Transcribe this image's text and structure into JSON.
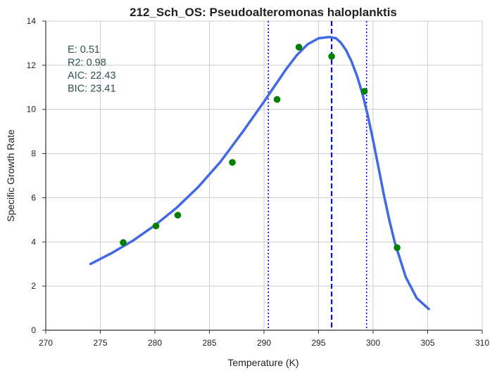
{
  "chart_data": {
    "type": "scatter",
    "title": "212_Sch_OS: Pseudoalteromonas haloplanktis",
    "xlabel": "Temperature (K)",
    "ylabel": "Specific Growth Rate",
    "xlim": [
      270,
      310
    ],
    "ylim": [
      0,
      14
    ],
    "xticks": [
      270,
      275,
      280,
      285,
      290,
      295,
      300,
      305,
      310
    ],
    "yticks": [
      0,
      2,
      4,
      6,
      8,
      10,
      12,
      14
    ],
    "grid": true,
    "annotations": [
      "E:  0.51",
      "R2:  0.98",
      "AIC: 22.43",
      "BIC: 23.41"
    ],
    "observed_points": {
      "color": "#008000",
      "x": [
        277.1,
        280.1,
        282.1,
        287.1,
        291.2,
        293.2,
        296.2,
        299.2,
        302.2
      ],
      "y": [
        3.97,
        4.72,
        5.21,
        7.6,
        10.45,
        12.82,
        12.4,
        10.82,
        3.74
      ]
    },
    "fitted_curve": {
      "color": "#4169e1",
      "x": [
        274.1,
        276.0,
        278.0,
        280.0,
        282.0,
        284.0,
        286.0,
        288.0,
        290.0,
        292.0,
        293.0,
        294.0,
        295.0,
        296.0,
        296.6,
        297.0,
        297.5,
        298.0,
        298.5,
        299.0,
        299.5,
        300.0,
        300.5,
        301.0,
        301.5,
        302.0,
        303.0,
        304.0,
        305.1
      ],
      "y": [
        3.0,
        3.48,
        4.06,
        4.75,
        5.55,
        6.5,
        7.62,
        8.95,
        10.35,
        11.8,
        12.45,
        12.95,
        13.22,
        13.28,
        13.22,
        13.05,
        12.7,
        12.2,
        11.55,
        10.75,
        9.75,
        8.6,
        7.35,
        6.1,
        4.95,
        3.95,
        2.4,
        1.45,
        0.96
      ]
    },
    "vertical_lines": [
      {
        "x": 296.2,
        "style": "dashed",
        "color": "#0000ff"
      },
      {
        "x": 290.4,
        "style": "dotted",
        "color": "#0000ff"
      },
      {
        "x": 299.4,
        "style": "dotted",
        "color": "#0000ff"
      }
    ]
  }
}
